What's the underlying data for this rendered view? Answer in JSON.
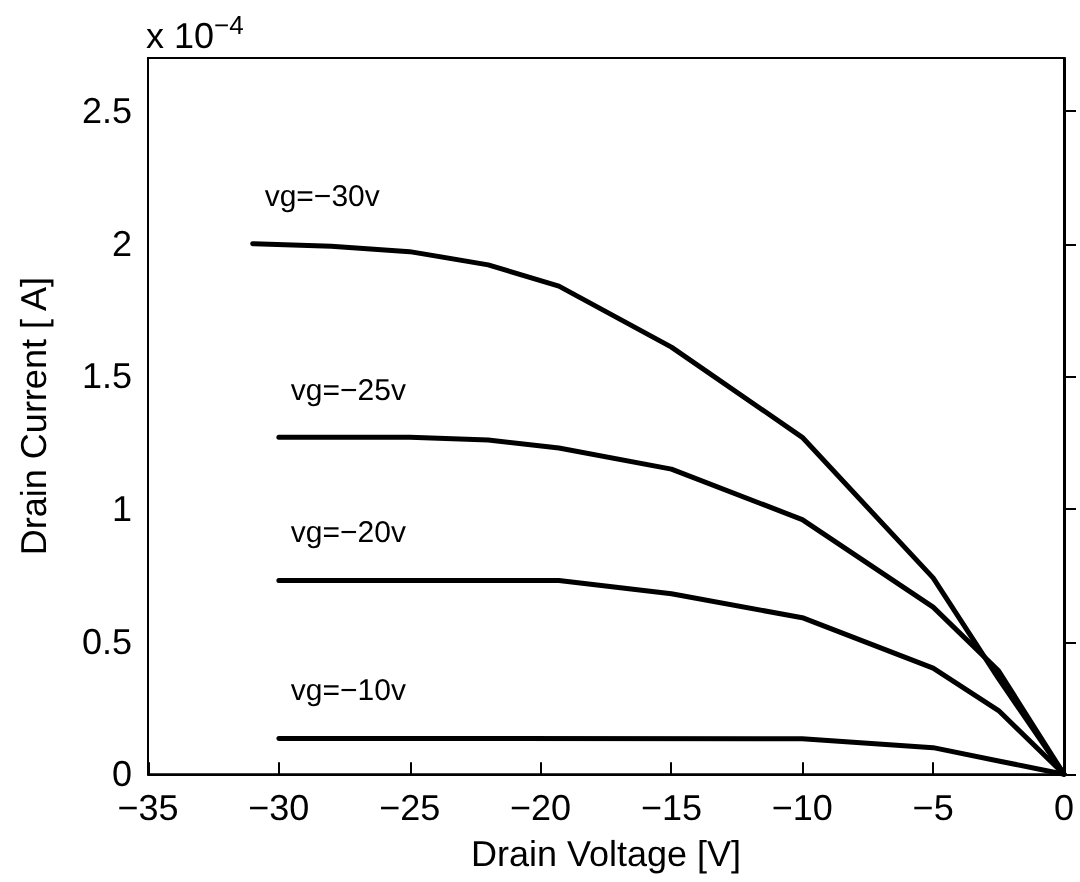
{
  "chart_data": {
    "type": "line",
    "xlabel": "Drain Voltage [V]",
    "ylabel": "Drain Current [ A]",
    "xlim": [
      -35,
      0
    ],
    "xticks": [
      -35,
      -30,
      -25,
      -20,
      -15,
      -10,
      -5,
      0
    ],
    "ylim": [
      0,
      2.7
    ],
    "yticks": [
      0,
      0.5,
      1,
      1.5,
      2,
      2.5
    ],
    "grid": false,
    "marker": "none",
    "line_style": "solid",
    "annotations": [
      "x 10$^{−4}$"
    ],
    "series": [
      {
        "name": "vg=−30v",
        "color": "#000000",
        "x": [
          -31,
          -28,
          -25,
          -22,
          -19.3,
          -15,
          -10,
          -5,
          -2.5,
          0
        ],
        "values": [
          2.0,
          1.99,
          1.97,
          1.92,
          1.84,
          1.61,
          1.27,
          0.74,
          0.36,
          0
        ]
      },
      {
        "name": "vg=−25v",
        "color": "#000000",
        "x": [
          -30,
          -25,
          -22,
          -19.3,
          -15,
          -10,
          -5,
          -2.5,
          0
        ],
        "values": [
          1.27,
          1.27,
          1.26,
          1.23,
          1.15,
          0.96,
          0.63,
          0.39,
          0
        ]
      },
      {
        "name": "vg=−20v",
        "color": "#000000",
        "x": [
          -30,
          -20,
          -19.3,
          -15,
          -10,
          -5,
          -2.5,
          0
        ],
        "values": [
          0.73,
          0.73,
          0.73,
          0.68,
          0.59,
          0.4,
          0.24,
          0
        ]
      },
      {
        "name": "vg=−10v",
        "color": "#000000",
        "x": [
          -30,
          -10,
          -5,
          -2.5,
          0
        ],
        "values": [
          0.135,
          0.134,
          0.1,
          0.05,
          0
        ]
      }
    ]
  }
}
